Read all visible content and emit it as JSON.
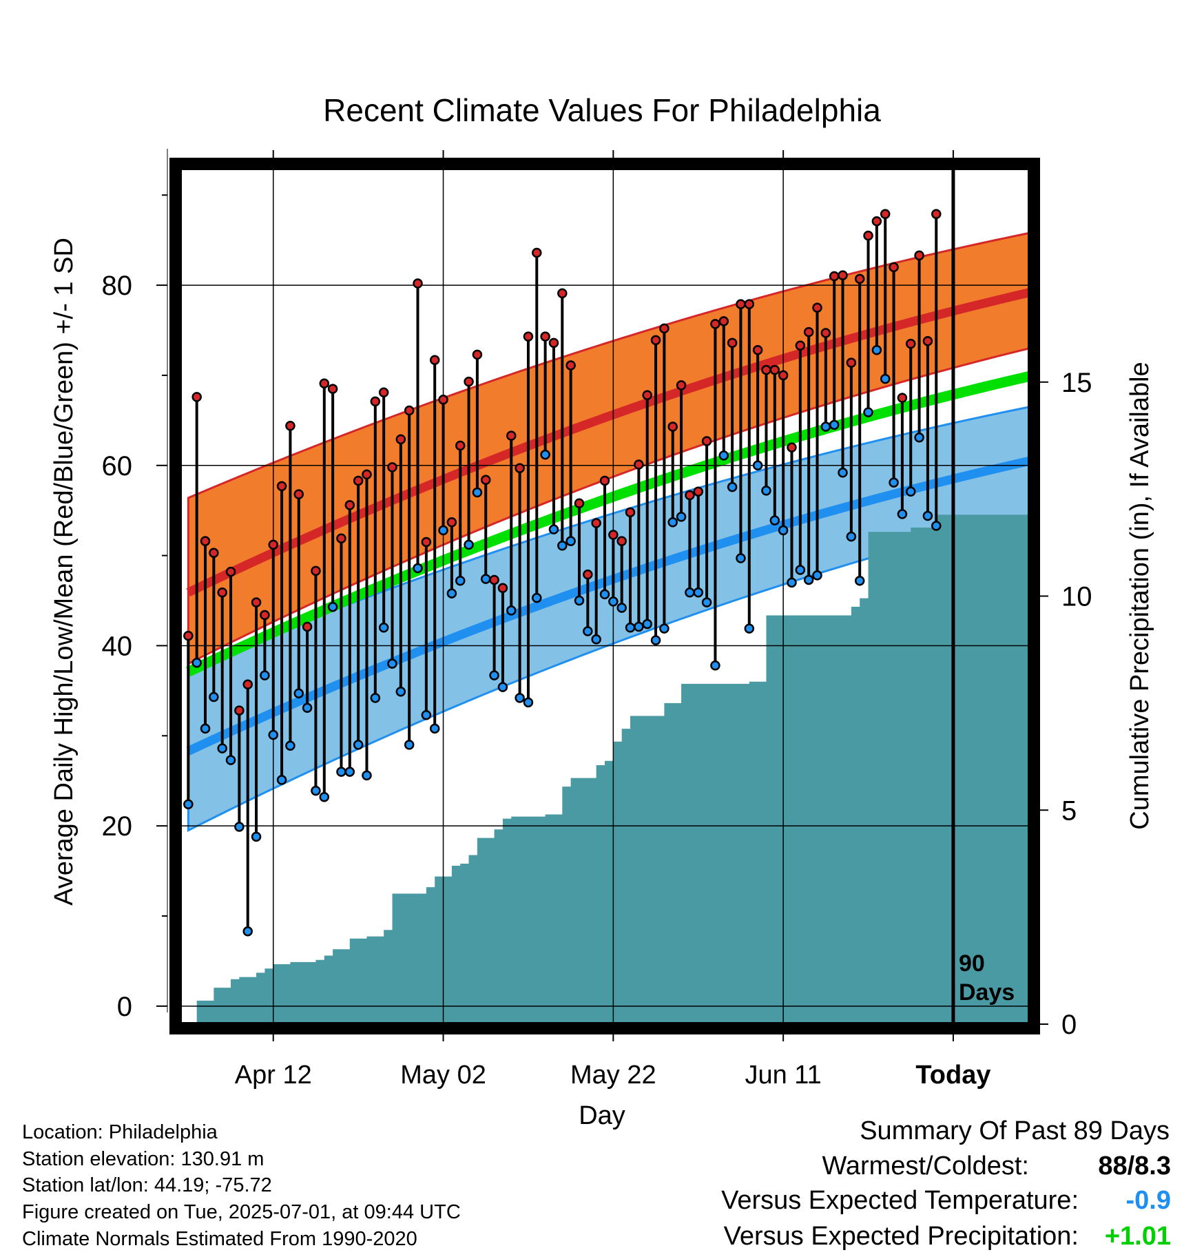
{
  "chart_data": {
    "type": "line",
    "title": "Recent Climate Values For Philadelphia",
    "xlabel": "Day",
    "ylabel": "Average Daily High/Low/Mean (Red/Blue/Green) +/- 1 SD",
    "y2label": "Cumulative Precipitation (in), If Available",
    "ylim": [
      -2,
      93
    ],
    "y2lim": [
      0,
      20
    ],
    "y_ticks": [
      "0",
      "20",
      "40",
      "60",
      "80"
    ],
    "y2_ticks": [
      "0",
      "5",
      "10",
      "15"
    ],
    "x_ticks": [
      {
        "label": "Apr 12",
        "day": 11
      },
      {
        "label": "May 02",
        "day": 31
      },
      {
        "label": "May 22",
        "day": 51
      },
      {
        "label": "Jun 11",
        "day": 71
      },
      {
        "label": "Today",
        "day": 91
      }
    ],
    "xlim": [
      0,
      100
    ],
    "today_marker": {
      "day": 91,
      "label_top": "90",
      "label_bottom": "Days"
    },
    "colors": {
      "high_band": "#f07c2c",
      "high_mean": "#d62728",
      "low_band": "#84c1e6",
      "low_mean": "#1f8ff0",
      "mean": "#00e000",
      "precip": "#4a9aa3",
      "high_point": "#d62728",
      "low_point": "#1f8ff0"
    },
    "normals": {
      "days": [
        1,
        100
      ],
      "high_mean": [
        45.9,
        79.2
      ],
      "high_upper": [
        56.4,
        85.8
      ],
      "high_lower": [
        38.0,
        73.0
      ],
      "low_mean": [
        28.3,
        60.5
      ],
      "low_upper": [
        37.5,
        66.5
      ],
      "low_lower": [
        19.5,
        54.5
      ],
      "mean": [
        37.1,
        69.9
      ]
    },
    "series": [
      {
        "name": "High",
        "values": [
          41.1,
          67.6,
          51.6,
          50.3,
          45.9,
          48.2,
          32.8,
          35.7,
          44.8,
          43.4,
          51.2,
          57.7,
          64.4,
          56.8,
          42.1,
          48.3,
          69.1,
          68.5,
          51.9,
          55.6,
          58.3,
          59.0,
          67.1,
          68.1,
          59.8,
          62.9,
          66.1,
          80.2,
          51.5,
          71.7,
          67.3,
          53.7,
          62.2,
          69.3,
          72.3,
          58.4,
          47.3,
          46.4,
          63.3,
          59.7,
          74.3,
          83.6,
          74.3,
          73.6,
          79.1,
          71.1,
          55.8,
          47.9,
          53.6,
          58.3,
          52.3,
          51.6,
          54.8,
          60.1,
          67.8,
          73.9,
          75.2,
          64.3,
          68.9,
          56.7,
          57.1,
          62.7,
          75.7,
          76.0,
          73.6,
          77.9,
          77.9,
          72.8,
          70.6,
          70.6,
          70.0,
          62.0,
          73.3,
          74.8,
          77.5,
          74.7,
          81.0,
          81.1,
          71.4,
          80.7,
          85.5,
          87.1,
          87.9,
          82.0,
          67.5,
          73.5,
          83.3,
          73.8,
          87.9
        ]
      },
      {
        "name": "Low",
        "values": [
          22.4,
          38.1,
          30.8,
          34.3,
          28.6,
          27.3,
          19.9,
          8.3,
          18.8,
          36.7,
          30.1,
          25.1,
          28.9,
          34.7,
          33.1,
          23.9,
          23.2,
          44.3,
          26.0,
          26.0,
          29.0,
          25.6,
          34.2,
          42.0,
          38.0,
          34.9,
          29.0,
          48.6,
          32.3,
          30.8,
          52.8,
          45.8,
          47.2,
          51.2,
          57.0,
          47.4,
          36.7,
          35.4,
          43.9,
          34.2,
          33.7,
          45.3,
          61.2,
          52.9,
          51.1,
          51.6,
          45.0,
          41.6,
          40.7,
          45.7,
          44.9,
          44.2,
          42.0,
          42.1,
          42.4,
          40.6,
          41.9,
          53.7,
          54.3,
          45.9,
          45.9,
          44.8,
          37.8,
          61.1,
          57.6,
          49.7,
          41.9,
          60.0,
          57.2,
          53.9,
          52.8,
          47.0,
          48.4,
          47.3,
          47.8,
          64.3,
          64.5,
          59.2,
          52.1,
          47.2,
          65.9,
          72.8,
          69.6,
          58.1,
          54.6,
          57.1,
          63.1,
          54.4,
          53.3
        ]
      }
    ],
    "precip_cumulative": {
      "days": [
        1,
        2,
        3,
        4,
        5,
        6,
        7,
        8,
        9,
        10,
        11,
        12,
        13,
        14,
        15,
        16,
        17,
        18,
        19,
        20,
        21,
        22,
        23,
        24,
        25,
        26,
        27,
        28,
        29,
        30,
        31,
        32,
        33,
        34,
        35,
        36,
        37,
        38,
        39,
        40,
        41,
        42,
        43,
        44,
        45,
        46,
        47,
        48,
        49,
        50,
        51,
        52,
        53,
        54,
        55,
        56,
        57,
        58,
        59,
        60,
        61,
        62,
        63,
        64,
        65,
        66,
        67,
        68,
        69,
        70,
        71,
        72,
        73,
        74,
        75,
        76,
        77,
        78,
        79,
        80,
        81,
        82,
        83,
        84,
        85,
        86,
        87,
        88,
        89,
        90,
        91,
        92,
        93,
        94,
        95,
        96,
        97,
        98,
        99,
        100
      ],
      "values": [
        0.0,
        0.55,
        0.55,
        0.85,
        0.85,
        1.05,
        1.1,
        1.1,
        1.2,
        1.3,
        1.4,
        1.4,
        1.45,
        1.45,
        1.45,
        1.5,
        1.6,
        1.75,
        1.75,
        2.0,
        2.0,
        2.05,
        2.05,
        2.2,
        3.05,
        3.05,
        3.05,
        3.05,
        3.2,
        3.45,
        3.45,
        3.7,
        3.75,
        3.95,
        4.35,
        4.35,
        4.55,
        4.8,
        4.85,
        4.85,
        4.85,
        4.85,
        4.9,
        4.9,
        5.55,
        5.75,
        5.75,
        5.75,
        6.05,
        6.15,
        6.6,
        6.9,
        7.2,
        7.2,
        7.2,
        7.2,
        7.5,
        7.5,
        7.95,
        7.95,
        7.95,
        7.95,
        7.95,
        7.95,
        7.95,
        7.95,
        8.0,
        8.0,
        9.55,
        9.55,
        9.55,
        9.55,
        9.55,
        9.55,
        9.55,
        9.55,
        9.55,
        9.55,
        9.75,
        9.95,
        11.5,
        11.5,
        11.5,
        11.5,
        11.5,
        11.6,
        11.6,
        11.6,
        11.9,
        11.9,
        11.9,
        11.9,
        11.9,
        11.9,
        11.9,
        11.9,
        11.9,
        11.9,
        11.9,
        11.9
      ]
    }
  },
  "info": {
    "location": "Location: Philadelphia",
    "elevation": "Station elevation: 130.91 m",
    "latlon": "Station lat/lon: 44.19; -75.72",
    "created": "Figure created on Tue, 2025-07-01, at 09:44 UTC",
    "normals": "Climate Normals Estimated From 1990-2020"
  },
  "summary": {
    "title": "Summary Of Past 89 Days",
    "warmest_label": "Warmest/Coldest:",
    "warmest_value": "88/8.3",
    "temp_label": "Versus Expected Temperature:",
    "temp_value": "-0.9",
    "temp_color": "#1f8ff0",
    "precip_label": "Versus Expected Precipitation:",
    "precip_value": "+1.01",
    "precip_color": "#00d000"
  }
}
